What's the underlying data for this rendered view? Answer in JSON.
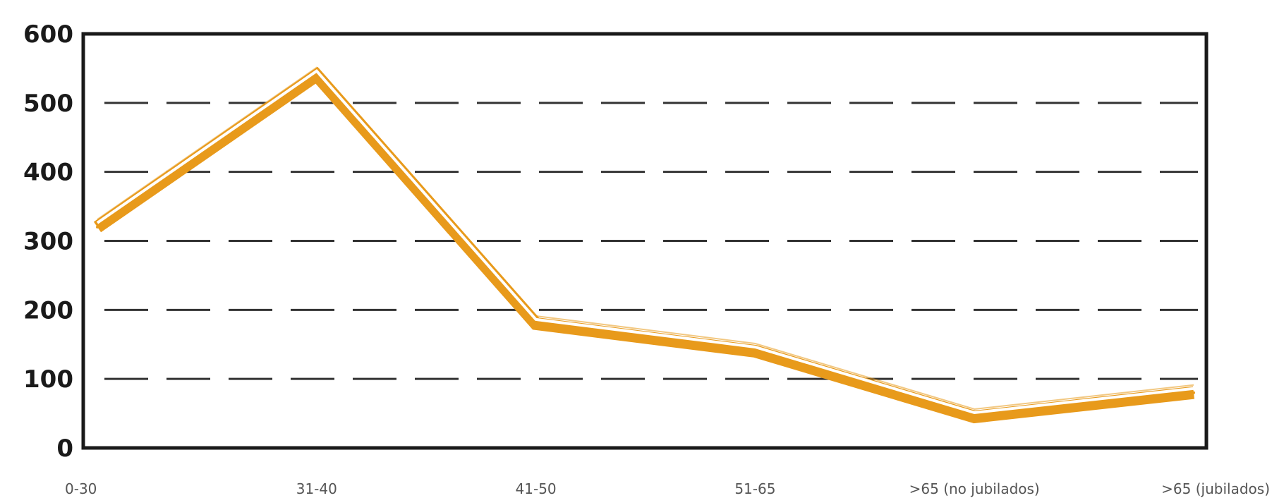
{
  "chart_data": {
    "type": "line",
    "title": "",
    "xlabel": "",
    "ylabel": "",
    "categories": [
      "0-30",
      "31-40",
      "41-50",
      "51-65",
      ">65 (no jubilados)",
      ">65 (jubilados)"
    ],
    "series": [
      {
        "values": [
          320,
          540,
          180,
          140,
          45,
          80
        ],
        "color": "#e89a1b",
        "highlight_color": "#ffffff"
      }
    ],
    "yticks": [
      "0",
      "100",
      "200",
      "300",
      "400",
      "500",
      "600"
    ],
    "ylim": [
      0,
      600
    ],
    "grid": true,
    "legend": "none"
  }
}
